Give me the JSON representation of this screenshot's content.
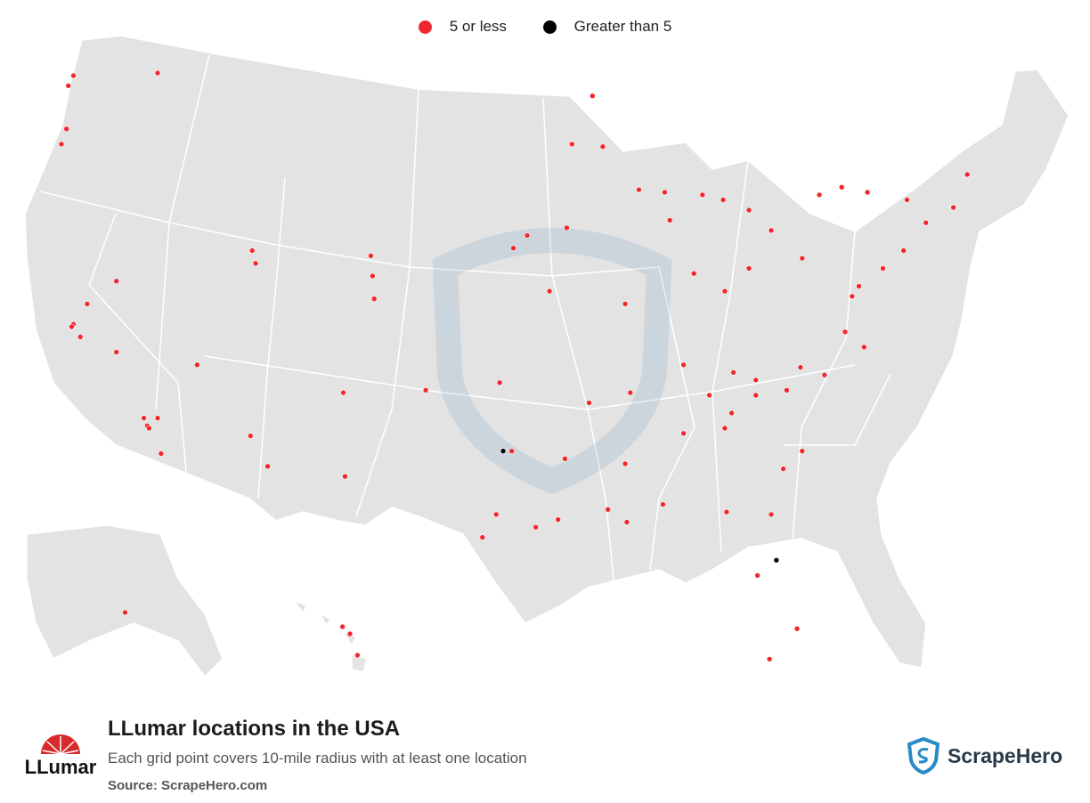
{
  "legend": {
    "items": [
      {
        "label": "5 or less",
        "color": "#f0282e"
      },
      {
        "label": "Greater than 5",
        "color": "#000000"
      }
    ]
  },
  "title": "LLumar locations in the USA",
  "subtitle": "Each grid point covers 10-mile radius with at least one location",
  "source": "Source: ScrapeHero.com",
  "brand_logo_text": "LLumar",
  "scrapehero_text": "ScrapeHero",
  "colors": {
    "land": "#e3e3e3",
    "border": "#ffffff",
    "low": "#f0282e",
    "high": "#000000"
  },
  "chart_data": {
    "type": "scatter",
    "description_units": "location grid points (longitude, latitude)",
    "points_low": [
      [
        -122.3,
        47.6
      ],
      [
        -122.6,
        47.2
      ],
      [
        -117.4,
        47.7
      ],
      [
        -122.7,
        45.5
      ],
      [
        -123.0,
        44.9
      ],
      [
        -122.3,
        37.8
      ],
      [
        -121.9,
        37.3
      ],
      [
        -122.4,
        37.7
      ],
      [
        -121.5,
        38.6
      ],
      [
        -119.8,
        36.7
      ],
      [
        -118.2,
        34.1
      ],
      [
        -118.0,
        33.8
      ],
      [
        -117.2,
        32.7
      ],
      [
        -117.9,
        33.7
      ],
      [
        -117.4,
        34.1
      ],
      [
        -115.1,
        36.2
      ],
      [
        -119.8,
        39.5
      ],
      [
        -111.9,
        40.7
      ],
      [
        -111.7,
        40.2
      ],
      [
        -112.0,
        33.4
      ],
      [
        -111.0,
        32.2
      ],
      [
        -104.9,
        39.7
      ],
      [
        -105.0,
        40.5
      ],
      [
        -104.8,
        38.8
      ],
      [
        -106.6,
        35.1
      ],
      [
        -106.5,
        31.8
      ],
      [
        -101.8,
        35.2
      ],
      [
        -97.5,
        35.5
      ],
      [
        -97.3,
        32.8
      ],
      [
        -96.8,
        32.8
      ],
      [
        -98.5,
        29.4
      ],
      [
        -97.7,
        30.3
      ],
      [
        -95.4,
        29.8
      ],
      [
        -94.1,
        30.1
      ],
      [
        -93.7,
        32.5
      ],
      [
        -92.3,
        34.7
      ],
      [
        -90.2,
        38.6
      ],
      [
        -94.6,
        39.1
      ],
      [
        -95.9,
        41.3
      ],
      [
        -96.7,
        40.8
      ],
      [
        -93.6,
        41.6
      ],
      [
        -93.3,
        44.9
      ],
      [
        -92.1,
        46.8
      ],
      [
        -91.5,
        44.8
      ],
      [
        -89.4,
        43.1
      ],
      [
        -87.9,
        43.0
      ],
      [
        -87.6,
        41.9
      ],
      [
        -86.2,
        39.8
      ],
      [
        -84.4,
        39.1
      ],
      [
        -83.0,
        40.0
      ],
      [
        -81.7,
        41.5
      ],
      [
        -83.0,
        42.3
      ],
      [
        -85.7,
        42.9
      ],
      [
        -84.5,
        42.7
      ],
      [
        -86.8,
        36.2
      ],
      [
        -85.3,
        35.0
      ],
      [
        -84.4,
        33.7
      ],
      [
        -83.9,
        35.9
      ],
      [
        -82.6,
        35.6
      ],
      [
        -80.8,
        35.2
      ],
      [
        -78.6,
        35.8
      ],
      [
        -77.4,
        37.5
      ],
      [
        -76.3,
        36.9
      ],
      [
        -77.0,
        38.9
      ],
      [
        -76.6,
        39.3
      ],
      [
        -75.2,
        40.0
      ],
      [
        -74.0,
        40.7
      ],
      [
        -73.8,
        42.7
      ],
      [
        -71.1,
        42.4
      ],
      [
        -70.3,
        43.7
      ],
      [
        -72.7,
        41.8
      ],
      [
        -79.9,
        40.4
      ],
      [
        -78.9,
        42.9
      ],
      [
        -77.6,
        43.2
      ],
      [
        -76.1,
        43.0
      ],
      [
        -80.2,
        25.8
      ],
      [
        -81.4,
        28.5
      ],
      [
        -82.5,
        27.9
      ],
      [
        -81.7,
        30.3
      ],
      [
        -84.3,
        30.4
      ],
      [
        -86.8,
        33.5
      ],
      [
        -88.0,
        30.7
      ],
      [
        -90.1,
        30.0
      ],
      [
        -91.2,
        30.5
      ],
      [
        -90.2,
        32.3
      ],
      [
        -89.9,
        35.1
      ],
      [
        -81.0,
        32.1
      ],
      [
        -79.9,
        32.8
      ],
      [
        -80.0,
        36.1
      ],
      [
        -157.9,
        21.3
      ],
      [
        -156.5,
        20.9
      ],
      [
        -155.1,
        19.7
      ],
      [
        -149.9,
        61.2
      ],
      [
        -81.8,
        24.6
      ],
      [
        -82.6,
        35.0
      ],
      [
        -84.0,
        34.3
      ]
    ],
    "points_high": [
      [
        -97.3,
        32.8
      ],
      [
        -81.4,
        28.5
      ]
    ]
  }
}
